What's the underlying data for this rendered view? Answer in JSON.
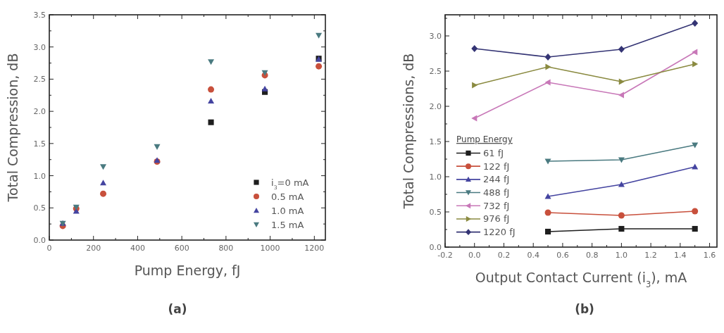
{
  "chart_data": [
    {
      "type": "scatter",
      "xlabel": "Pump Energy, fJ",
      "ylabel": "Total Compression, dB",
      "annotations": [
        "(a)"
      ],
      "x": [
        61,
        122,
        244,
        488,
        732,
        976,
        1220
      ],
      "xlim": [
        0,
        1250
      ],
      "ylim": [
        0,
        3.5
      ],
      "xticks": [
        0,
        {
          "value": 100,
          "label": null
        },
        200,
        {
          "value": 300,
          "label": null
        },
        400,
        {
          "value": 500,
          "label": null
        },
        600,
        {
          "value": 700,
          "label": null
        },
        800,
        {
          "value": 900,
          "label": null
        },
        1000,
        {
          "value": 1100,
          "label": null
        },
        1200
      ],
      "yticks": [
        {
          "value": 0,
          "label": "0.0"
        },
        {
          "value": 0.25,
          "label": null
        },
        0.5,
        {
          "value": 0.75,
          "label": null
        },
        {
          "value": 1,
          "label": "1.0"
        },
        {
          "value": 1.25,
          "label": null
        },
        1.5,
        {
          "value": 1.75,
          "label": null
        },
        {
          "value": 2,
          "label": "2.0"
        },
        {
          "value": 2.25,
          "label": null
        },
        2.5,
        {
          "value": 2.75,
          "label": null
        },
        {
          "value": 3,
          "label": "3.0"
        },
        {
          "value": 3.25,
          "label": null
        },
        3.5
      ],
      "legend": "bottom right",
      "series": [
        {
          "name": "i$_{3}$=0 mA",
          "color": "#1e1e1e",
          "marker": "square",
          "values": [
            null,
            null,
            null,
            null,
            1.83,
            2.3,
            2.82
          ]
        },
        {
          "name": "0.5 mA",
          "color": "#c8503c",
          "marker": "circle",
          "values": [
            0.22,
            0.49,
            0.72,
            1.22,
            2.34,
            2.56,
            2.7
          ]
        },
        {
          "name": "1.0 mA",
          "color": "#4444a0",
          "marker": "triangle",
          "values": [
            0.26,
            0.45,
            0.89,
            1.24,
            2.16,
            2.35,
            2.81
          ]
        },
        {
          "name": "1.5 mA",
          "color": "#4a7a80",
          "marker": "triangle-down",
          "values": [
            0.26,
            0.51,
            1.14,
            1.45,
            2.77,
            2.6,
            3.18
          ]
        }
      ]
    },
    {
      "type": "line",
      "xlabel": "Output Contact Current (i$_{3}$), mA",
      "ylabel": "Total Compressions, dB",
      "annotations": [
        "(b)"
      ],
      "legend_title": "Pump Energy",
      "x": [
        0,
        0.5,
        1.0,
        1.5
      ],
      "xlim": [
        -0.2,
        1.65
      ],
      "ylim": [
        0,
        3.3
      ],
      "xticks": [
        -0.2,
        {
          "value": -0.1,
          "label": null
        },
        {
          "value": 0,
          "label": "0.0"
        },
        {
          "value": 0.1,
          "label": null
        },
        0.2,
        {
          "value": 0.3,
          "label": null
        },
        0.4,
        {
          "value": 0.5,
          "label": null
        },
        0.6,
        {
          "value": 0.7,
          "label": null
        },
        0.8,
        {
          "value": 0.9,
          "label": null
        },
        {
          "value": 1,
          "label": "1.0"
        },
        {
          "value": 1.1,
          "label": null
        },
        1.2,
        {
          "value": 1.3,
          "label": null
        },
        1.4,
        {
          "value": 1.5,
          "label": null
        },
        1.6
      ],
      "yticks": [
        {
          "value": 0,
          "label": "0.0"
        },
        {
          "value": 0.25,
          "label": null
        },
        0.5,
        {
          "value": 0.75,
          "label": null
        },
        {
          "value": 1,
          "label": "1.0"
        },
        {
          "value": 1.25,
          "label": null
        },
        1.5,
        {
          "value": 1.75,
          "label": null
        },
        {
          "value": 2,
          "label": "2.0"
        },
        {
          "value": 2.25,
          "label": null
        },
        2.5,
        {
          "value": 2.75,
          "label": null
        },
        {
          "value": 3,
          "label": "3.0"
        },
        {
          "value": 3.25,
          "label": null
        }
      ],
      "legend": "bottom left",
      "line_style": "solid",
      "series": [
        {
          "name": "61 fJ",
          "color": "#1e1e1e",
          "marker": "square",
          "values": [
            null,
            0.22,
            0.26,
            0.26
          ]
        },
        {
          "name": "122 fJ",
          "color": "#c8503c",
          "marker": "circle",
          "values": [
            null,
            0.49,
            0.45,
            0.51
          ]
        },
        {
          "name": "244 fJ",
          "color": "#4444a0",
          "marker": "triangle",
          "values": [
            null,
            0.72,
            0.89,
            1.14
          ]
        },
        {
          "name": "488 fJ",
          "color": "#4a7a80",
          "marker": "triangle-down",
          "values": [
            null,
            1.22,
            1.24,
            1.45
          ]
        },
        {
          "name": "732 fJ",
          "color": "#c878b8",
          "marker": "triangle-left",
          "values": [
            1.83,
            2.34,
            2.16,
            2.77
          ]
        },
        {
          "name": "976 fJ",
          "color": "#8a8a40",
          "marker": "triangle-right",
          "values": [
            2.3,
            2.56,
            2.35,
            2.6
          ]
        },
        {
          "name": "1220 fJ",
          "color": "#343474",
          "marker": "diamond",
          "values": [
            2.82,
            2.7,
            2.81,
            3.18
          ]
        }
      ]
    }
  ]
}
